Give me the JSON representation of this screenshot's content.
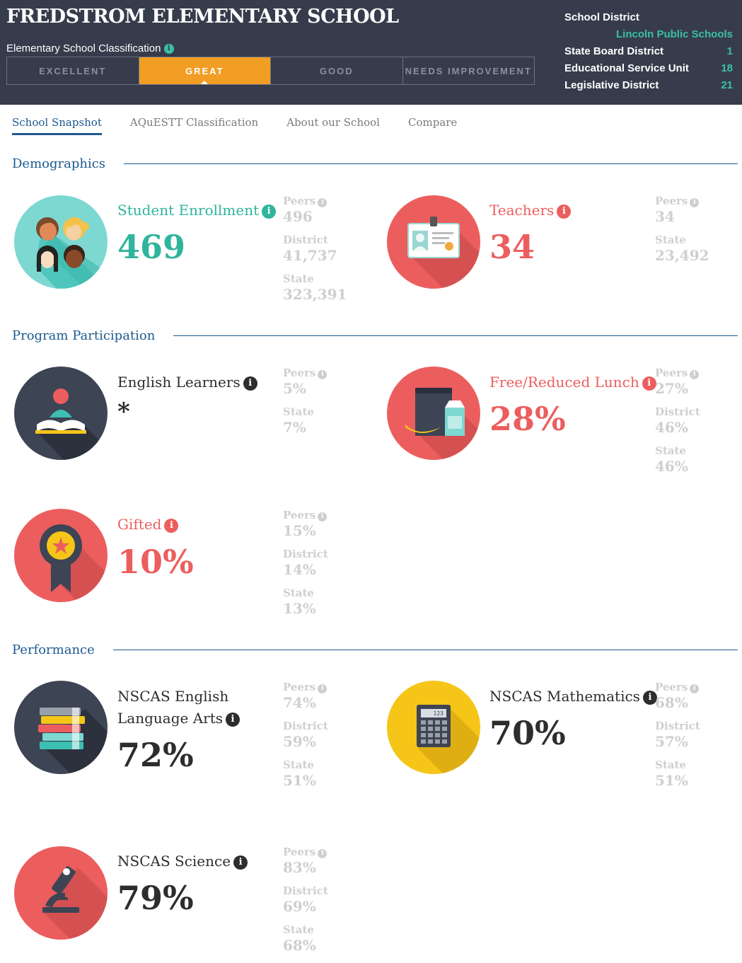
{
  "header": {
    "school_name": "FREDSTROM ELEMENTARY SCHOOL",
    "classification_label": "Elementary School Classification",
    "ratings": [
      "EXCELLENT",
      "GREAT",
      "GOOD",
      "NEEDS IMPROVEMENT"
    ],
    "active_rating": "GREAT",
    "district": {
      "school_district_label": "School District",
      "school_district_value": "Lincoln Public Schools",
      "state_board_label": "State Board District",
      "state_board_value": "1",
      "esu_label": "Educational Service Unit",
      "esu_value": "18",
      "legislative_label": "Legislative District",
      "legislative_value": "21"
    }
  },
  "tabs": [
    "School Snapshot",
    "AQuESTT Classification",
    "About our School",
    "Compare"
  ],
  "sections": {
    "demographics": "Demographics",
    "program": "Program Participation",
    "performance": "Performance"
  },
  "labels": {
    "peers": "Peers",
    "district": "District",
    "state": "State"
  },
  "stats": {
    "enrollment": {
      "title": "Student Enrollment",
      "value": "469",
      "peers": "496",
      "district": "41,737",
      "state": "323,391"
    },
    "teachers": {
      "title": "Teachers",
      "value": "34",
      "peers": "34",
      "state": "23,492"
    },
    "english_learners": {
      "title": "English Learners",
      "value": "*",
      "peers": "5%",
      "state": "7%"
    },
    "lunch": {
      "title": "Free/Reduced Lunch",
      "value": "28%",
      "peers": "27%",
      "district": "46%",
      "state": "46%"
    },
    "gifted": {
      "title": "Gifted",
      "value": "10%",
      "peers": "15%",
      "district": "14%",
      "state": "13%"
    },
    "ela": {
      "title_line1": "NSCAS English",
      "title_line2": "Language Arts",
      "value": "72%",
      "peers": "74%",
      "district": "59%",
      "state": "51%"
    },
    "math": {
      "title": "NSCAS Mathematics",
      "value": "70%",
      "peers": "68%",
      "district": "57%",
      "state": "51%"
    },
    "science": {
      "title": "NSCAS Science",
      "value": "79%",
      "peers": "83%",
      "district": "69%",
      "state": "68%"
    }
  },
  "calculator_display": "123",
  "colors": {
    "header_bg": "#363c4c",
    "teal": "#2fb59c",
    "red": "#ec5e5e",
    "orange": "#f29d24",
    "blue": "#1c5a8f",
    "yellow": "#f5c518",
    "dark_circle": "#3d4454"
  },
  "icons": [
    "info-icon",
    "students-icon",
    "id-badge-icon",
    "reader-book-icon",
    "lunch-bag-icon",
    "award-ribbon-icon",
    "books-stack-icon",
    "calculator-icon",
    "microscope-icon"
  ]
}
